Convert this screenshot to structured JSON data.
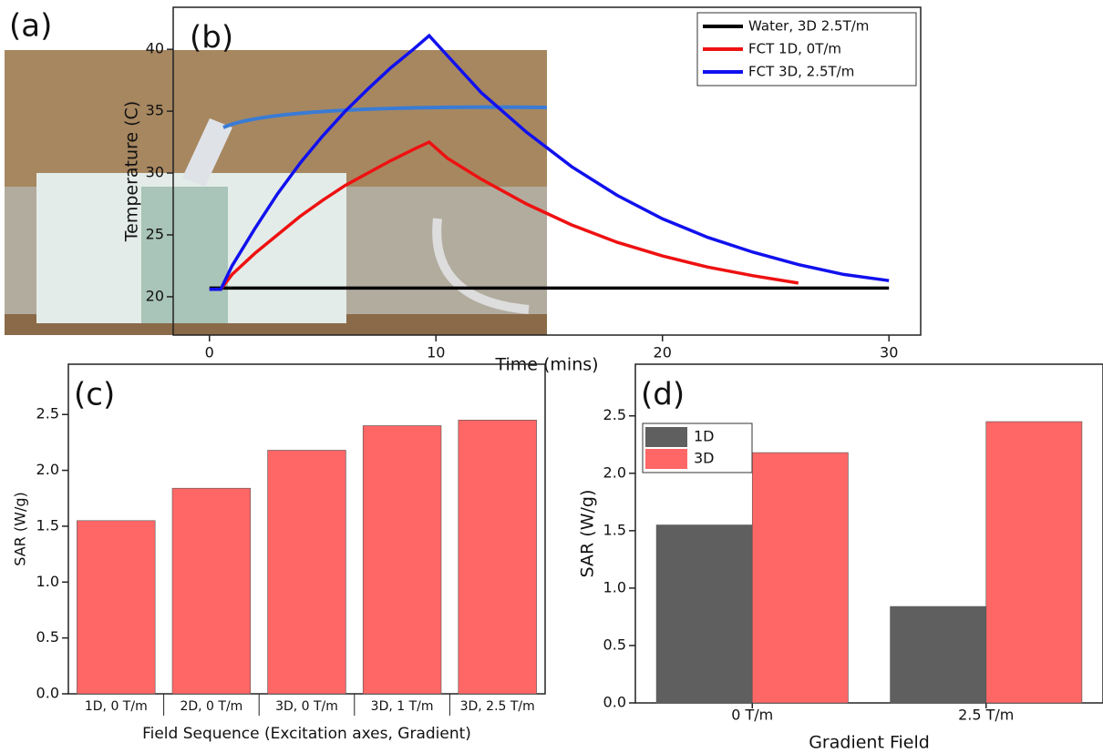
{
  "photo": {
    "label": "(a)"
  },
  "chart_data": [
    {
      "type": "line",
      "label": "(b)",
      "x_label": "Time (mins)",
      "y_label": "Temperature (C)",
      "xlim": [
        -1.6,
        31.4
      ],
      "xticks": [
        0,
        10,
        20,
        30
      ],
      "ylim": [
        16.9,
        43.4
      ],
      "yticks": [
        20,
        25,
        30,
        35,
        40
      ],
      "legend": "top-right",
      "series": [
        {
          "name": "Water, 3D 2.5T/m",
          "color": "#000000",
          "x": [
            0,
            30
          ],
          "values": [
            20.7,
            20.7
          ]
        },
        {
          "name": "FCT 1D, 0T/m",
          "color": "#ee1111",
          "x": [
            0,
            0.5,
            1,
            2,
            3,
            4,
            5,
            6,
            7,
            8,
            9,
            9.7,
            10.5,
            12,
            14,
            16,
            18,
            20,
            22,
            24,
            26
          ],
          "values": [
            20.6,
            20.6,
            21.8,
            23.5,
            25,
            26.5,
            27.8,
            29,
            30,
            31,
            31.9,
            32.5,
            31.2,
            29.5,
            27.5,
            25.8,
            24.4,
            23.3,
            22.4,
            21.7,
            21.1
          ]
        },
        {
          "name": "FCT 3D, 2.5T/m",
          "color": "#1111ee",
          "x": [
            0,
            0.5,
            1,
            2,
            3,
            4,
            5,
            6,
            7,
            8,
            9,
            9.7,
            10.5,
            12,
            14,
            16,
            18,
            20,
            22,
            24,
            26,
            28,
            30
          ],
          "values": [
            20.6,
            20.6,
            22.5,
            25.5,
            28.3,
            30.8,
            33,
            35,
            36.8,
            38.5,
            40,
            41.1,
            39.5,
            36.5,
            33.3,
            30.5,
            28.2,
            26.3,
            24.8,
            23.6,
            22.6,
            21.8,
            21.3
          ]
        }
      ]
    },
    {
      "type": "bar",
      "label": "(c)",
      "x_label": "Field Sequence (Excitation axes, Gradient)",
      "y_label": "SAR (W/g)",
      "categories": [
        "1D, 0 T/m",
        "2D, 0 T/m",
        "3D, 0 T/m",
        "3D, 1 T/m",
        "3D, 2.5 T/m"
      ],
      "values": [
        1.55,
        1.84,
        2.18,
        2.4,
        2.45
      ],
      "color": "#ff6666",
      "ylim": [
        0,
        2.95
      ],
      "yticks": [
        {
          "value": 0,
          "label": "0.0"
        },
        0.5,
        {
          "value": 1,
          "label": "1.0"
        },
        1.5,
        {
          "value": 2,
          "label": "2.0"
        },
        2.5
      ]
    },
    {
      "type": "grouped-bar",
      "label": "(d)",
      "x_label": "Gradient Field",
      "y_label": "SAR (W/g)",
      "categories": [
        "0 T/m",
        "2.5 T/m"
      ],
      "legend": "top-left",
      "series": [
        {
          "name": "1D",
          "color": "#5f5f5f",
          "values": [
            1.55,
            0.84
          ]
        },
        {
          "name": "3D",
          "color": "#ff6666",
          "values": [
            2.18,
            2.45
          ]
        }
      ],
      "ylim": [
        0,
        2.95
      ],
      "yticks": [
        {
          "value": 0,
          "label": "0.0"
        },
        0.5,
        {
          "value": 1,
          "label": "1.0"
        },
        1.5,
        {
          "value": 2,
          "label": "2.0"
        },
        2.5
      ]
    }
  ]
}
